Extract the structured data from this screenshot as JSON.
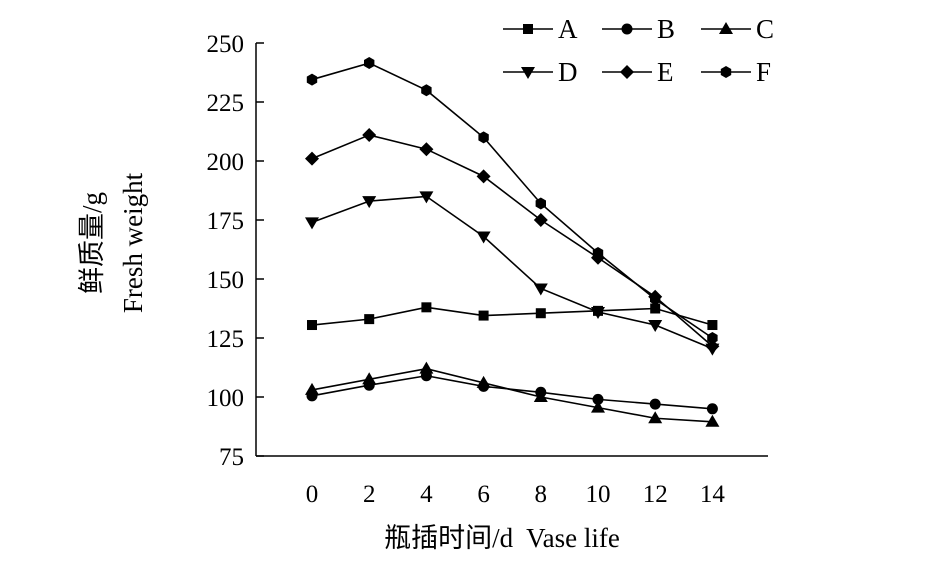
{
  "chart_data": {
    "type": "line",
    "x": [
      0,
      2,
      4,
      6,
      8,
      10,
      12,
      14
    ],
    "xticks": [
      "0",
      "2",
      "4",
      "6",
      "8",
      "10",
      "12",
      "14"
    ],
    "yticks": [
      "75",
      "100",
      "125",
      "150",
      "175",
      "200",
      "225",
      "250"
    ],
    "ylim": [
      75,
      250
    ],
    "xlabel": "瓶插时间/d  Vase life",
    "ylabel_cn": "鲜质量/g",
    "ylabel_en": "Fresh weight",
    "grid": false,
    "legend_position": "top-right",
    "series": [
      {
        "name": "A",
        "marker": "square",
        "values": [
          130.5,
          133,
          138,
          134.5,
          135.5,
          136.5,
          137.5,
          130.5
        ]
      },
      {
        "name": "B",
        "marker": "circle",
        "values": [
          100.5,
          105,
          109,
          104.5,
          102,
          99,
          97,
          95
        ]
      },
      {
        "name": "C",
        "marker": "triangle-up",
        "values": [
          103,
          107.5,
          112,
          106,
          100,
          95.5,
          91,
          89.5
        ]
      },
      {
        "name": "D",
        "marker": "triangle-down",
        "values": [
          174,
          183,
          185,
          168,
          146,
          136,
          130.5,
          120.5
        ]
      },
      {
        "name": "E",
        "marker": "diamond",
        "values": [
          201,
          211,
          205,
          193.5,
          175,
          159,
          142.5,
          121.5
        ]
      },
      {
        "name": "F",
        "marker": "hexagon",
        "values": [
          234.5,
          241.5,
          230,
          210,
          182,
          161,
          141.5,
          125
        ]
      }
    ]
  },
  "colors": {
    "line": "#000000",
    "background": "#ffffff"
  }
}
